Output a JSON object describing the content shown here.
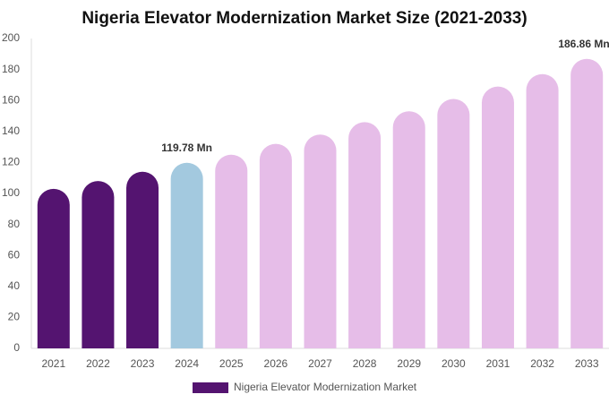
{
  "chart_data": {
    "type": "bar",
    "title": "Nigeria Elevator Modernization Market Size (2021-2033)",
    "categories": [
      "2021",
      "2022",
      "2023",
      "2024",
      "2025",
      "2026",
      "2027",
      "2028",
      "2029",
      "2030",
      "2031",
      "2032",
      "2033"
    ],
    "series": [
      {
        "name": "Nigeria Elevator Modernization Market",
        "color": "#541470",
        "colors": [
          "#541470",
          "#541470",
          "#541470",
          "#a3c9df",
          "#e6bde8",
          "#e6bde8",
          "#e6bde8",
          "#e6bde8",
          "#e6bde8",
          "#e6bde8",
          "#e6bde8",
          "#e6bde8",
          "#e6bde8"
        ],
        "values": [
          103,
          108,
          114,
          119.78,
          125,
          132,
          138,
          146,
          153,
          161,
          169,
          177,
          186.86
        ],
        "value_labels": [
          null,
          null,
          null,
          "119.78 Mn",
          null,
          null,
          null,
          null,
          null,
          null,
          null,
          null,
          "186.86 Mn"
        ]
      }
    ],
    "ylim": [
      0,
      200
    ],
    "yticks": [
      0,
      20,
      40,
      60,
      80,
      100,
      120,
      140,
      160,
      180,
      200
    ],
    "grid": false,
    "legend": "bottom"
  }
}
